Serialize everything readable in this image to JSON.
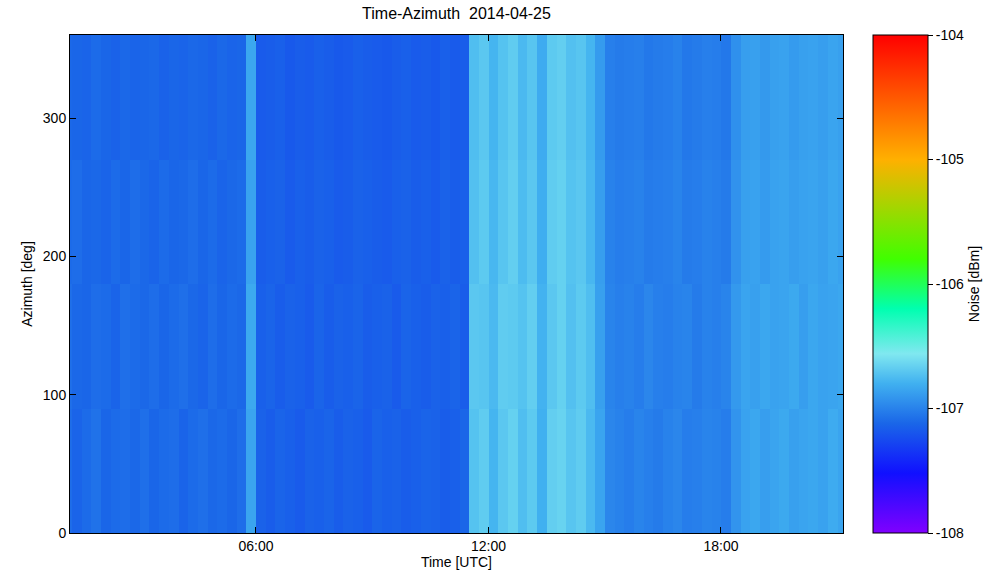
{
  "chart_data": {
    "type": "heatmap",
    "title": "Time-Azimuth  2014-04-25",
    "x_label": "Time [UTC]",
    "y_label": "Azimuth [deg]",
    "z_label": "Noise [dBm]",
    "xlim": [
      1.2,
      21.15
    ],
    "xticks": [
      {
        "value": 6,
        "label": "06:00"
      },
      {
        "value": 12,
        "label": "12:00"
      },
      {
        "value": 18,
        "label": "18:00"
      }
    ],
    "ylim": [
      0,
      360
    ],
    "yticks": [
      0,
      100,
      200,
      300
    ],
    "zlim": [
      -108,
      -104
    ],
    "zticks": [
      -108,
      -107,
      -106,
      -105,
      -104
    ],
    "x": [
      1.125,
      1.375,
      1.625,
      1.875,
      2.125,
      2.375,
      2.625,
      2.875,
      3.125,
      3.375,
      3.625,
      3.875,
      4.125,
      4.375,
      4.625,
      4.875,
      5.125,
      5.375,
      5.625,
      5.875,
      6.125,
      6.375,
      6.625,
      6.875,
      7.125,
      7.375,
      7.625,
      7.875,
      8.125,
      8.375,
      8.625,
      8.875,
      9.125,
      9.375,
      9.625,
      9.875,
      10.125,
      10.375,
      10.625,
      10.875,
      11.125,
      11.375,
      11.625,
      11.875,
      12.125,
      12.375,
      12.625,
      12.875,
      13.125,
      13.375,
      13.625,
      13.875,
      14.125,
      14.375,
      14.625,
      14.875,
      15.125,
      15.375,
      15.625,
      15.875,
      16.125,
      16.375,
      16.625,
      16.875,
      17.125,
      17.375,
      17.625,
      17.875,
      18.125,
      18.375,
      18.625,
      18.875,
      19.125,
      19.375,
      19.625,
      19.875,
      20.125,
      20.375,
      20.625,
      20.875,
      21.125
    ],
    "y": [
      45,
      135,
      225,
      315
    ],
    "z": [
      [
        -107.09,
        -107.13,
        -107.1,
        -107.07,
        -107.12,
        -107.1,
        -107.09,
        -107.11,
        -107.08,
        -107.12,
        -107.1,
        -107.09,
        -107.13,
        -107.1,
        -107.08,
        -107.11,
        -107.1,
        -107.12,
        -107.09,
        -106.85,
        -107.14,
        -107.16,
        -107.13,
        -107.15,
        -107.17,
        -107.14,
        -107.15,
        -107.13,
        -107.16,
        -107.14,
        -107.15,
        -107.17,
        -107.13,
        -107.15,
        -107.14,
        -107.16,
        -107.15,
        -107.13,
        -107.14,
        -107.16,
        -107.15,
        -107.12,
        -106.72,
        -106.68,
        -106.78,
        -106.7,
        -106.66,
        -106.74,
        -106.69,
        -106.8,
        -106.67,
        -106.65,
        -106.71,
        -106.68,
        -106.76,
        -106.85,
        -106.98,
        -107.0,
        -107.02,
        -106.99,
        -107.01,
        -107.03,
        -107.0,
        -106.98,
        -107.02,
        -107.01,
        -106.99,
        -107.0,
        -107.02,
        -106.92,
        -106.86,
        -106.84,
        -106.88,
        -106.85,
        -106.83,
        -106.87,
        -106.85,
        -106.84,
        -106.86,
        -106.82,
        -106.85
      ],
      [
        -107.08,
        -107.11,
        -107.12,
        -107.09,
        -107.1,
        -107.13,
        -107.08,
        -107.1,
        -107.11,
        -107.09,
        -107.12,
        -107.1,
        -107.08,
        -107.11,
        -107.13,
        -107.09,
        -107.12,
        -107.1,
        -107.11,
        -106.83,
        -107.15,
        -107.13,
        -107.16,
        -107.14,
        -107.15,
        -107.17,
        -107.13,
        -107.16,
        -107.14,
        -107.15,
        -107.13,
        -107.16,
        -107.15,
        -107.14,
        -107.17,
        -107.13,
        -107.15,
        -107.16,
        -107.14,
        -107.15,
        -107.13,
        -107.16,
        -106.7,
        -106.71,
        -106.76,
        -106.68,
        -106.69,
        -106.72,
        -106.67,
        -106.79,
        -106.7,
        -106.66,
        -106.73,
        -106.69,
        -106.74,
        -106.87,
        -106.99,
        -107.01,
        -107.0,
        -107.02,
        -106.98,
        -107.01,
        -107.02,
        -107.0,
        -106.99,
        -107.03,
        -107.0,
        -107.01,
        -106.99,
        -106.9,
        -106.85,
        -106.87,
        -106.84,
        -106.86,
        -106.85,
        -106.83,
        -106.88,
        -106.84,
        -106.86,
        -106.85,
        -106.84
      ],
      [
        -107.1,
        -107.09,
        -107.12,
        -107.11,
        -107.13,
        -107.1,
        -107.12,
        -107.09,
        -107.11,
        -107.13,
        -107.1,
        -107.12,
        -107.11,
        -107.09,
        -107.12,
        -107.1,
        -107.13,
        -107.11,
        -107.1,
        -106.86,
        -107.16,
        -107.15,
        -107.14,
        -107.17,
        -107.15,
        -107.16,
        -107.14,
        -107.15,
        -107.17,
        -107.16,
        -107.14,
        -107.15,
        -107.16,
        -107.17,
        -107.15,
        -107.14,
        -107.16,
        -107.15,
        -107.17,
        -107.14,
        -107.16,
        -107.15,
        -106.73,
        -106.69,
        -106.77,
        -106.71,
        -106.67,
        -106.75,
        -106.7,
        -106.81,
        -106.68,
        -106.66,
        -106.72,
        -106.7,
        -106.77,
        -106.88,
        -107.0,
        -107.02,
        -107.01,
        -107.0,
        -107.03,
        -107.02,
        -107.01,
        -106.99,
        -107.03,
        -107.02,
        -107.0,
        -107.01,
        -107.03,
        -106.93,
        -106.87,
        -106.86,
        -106.89,
        -106.86,
        -106.85,
        -106.88,
        -106.86,
        -106.85,
        -106.87,
        -106.84,
        -106.86
      ],
      [
        -107.11,
        -107.12,
        -107.13,
        -107.1,
        -107.12,
        -107.14,
        -107.11,
        -107.13,
        -107.12,
        -107.11,
        -107.14,
        -107.12,
        -107.13,
        -107.11,
        -107.12,
        -107.14,
        -107.11,
        -107.13,
        -107.12,
        -106.84,
        -107.17,
        -107.16,
        -107.15,
        -107.18,
        -107.16,
        -107.17,
        -107.15,
        -107.16,
        -107.18,
        -107.17,
        -107.15,
        -107.16,
        -107.17,
        -107.18,
        -107.16,
        -107.15,
        -107.17,
        -107.16,
        -107.18,
        -107.15,
        -107.17,
        -107.16,
        -106.74,
        -106.7,
        -106.78,
        -106.72,
        -106.68,
        -106.76,
        -106.71,
        -106.82,
        -106.69,
        -106.67,
        -106.73,
        -106.71,
        -106.78,
        -106.89,
        -107.01,
        -107.03,
        -107.02,
        -107.01,
        -107.04,
        -107.03,
        -107.02,
        -107.0,
        -107.04,
        -107.03,
        -107.01,
        -107.02,
        -107.04,
        -106.94,
        -106.88,
        -106.87,
        -106.9,
        -106.87,
        -106.86,
        -106.89,
        -106.87,
        -106.86,
        -106.88,
        -106.85,
        -106.87
      ]
    ]
  }
}
